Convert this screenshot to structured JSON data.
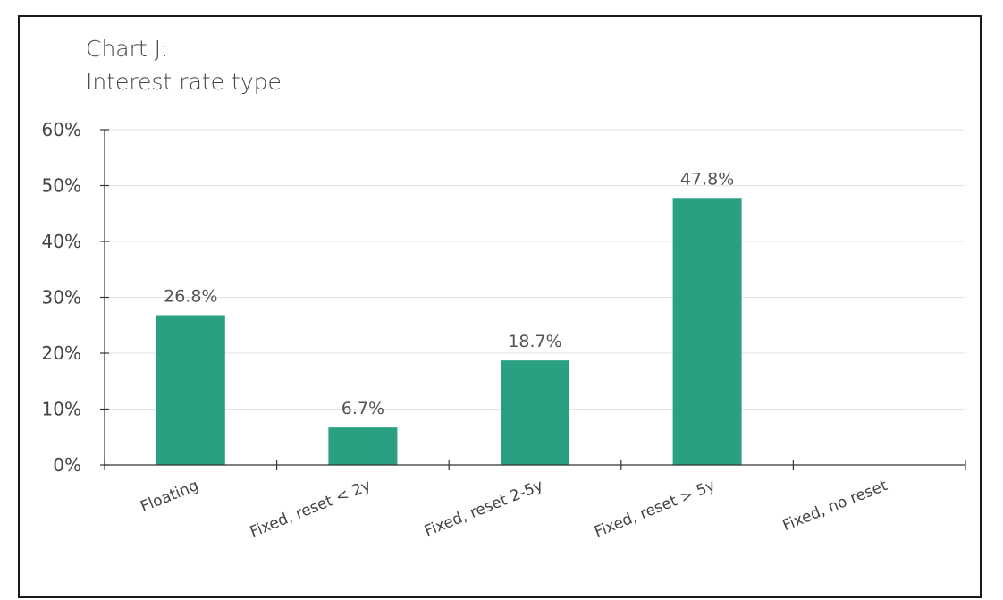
{
  "chart_data": {
    "type": "bar",
    "title_line1": "Chart J:",
    "title_line2": "Interest rate type",
    "categories": [
      "Floating",
      "Fixed, reset < 2y",
      "Fixed, reset 2-5y",
      "Fixed, reset > 5y",
      "Fixed, no reset"
    ],
    "values": [
      26.8,
      6.7,
      18.7,
      47.8,
      null
    ],
    "data_labels": [
      "26.8%",
      "6.7%",
      "18.7%",
      "47.8%",
      ""
    ],
    "y_ticks": [
      "0%",
      "10%",
      "20%",
      "30%",
      "40%",
      "50%",
      "60%"
    ],
    "ylim": [
      0,
      60
    ],
    "grid": true,
    "bar_color": "#2aa083",
    "grid_color": "#e3e3e3",
    "axis_color": "#333333"
  }
}
